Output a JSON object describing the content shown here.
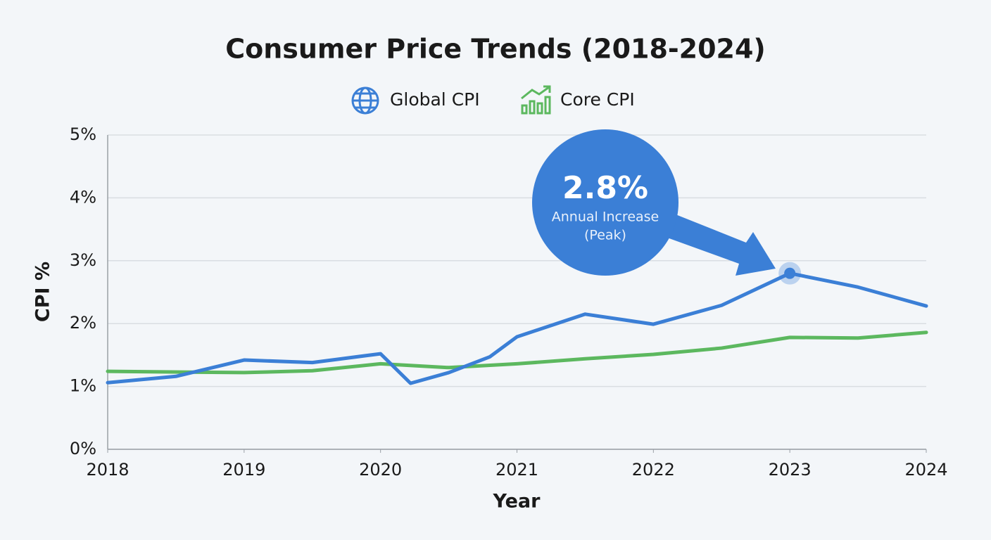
{
  "chart_data": {
    "type": "line",
    "title": "Consumer Price Trends (2018-2024)",
    "xlabel": "Year",
    "ylabel": "CPI %",
    "legend": "top",
    "grid": true,
    "xlim": [
      2018,
      2024
    ],
    "xticks": [
      2018,
      2019,
      2020,
      2021,
      2022,
      2023,
      2024
    ],
    "ylim": [
      0,
      5
    ],
    "yticks": [
      {
        "value": 0,
        "label": "0%"
      },
      {
        "value": 1,
        "label": "1%"
      },
      {
        "value": 2,
        "label": "2%"
      },
      {
        "value": 3,
        "label": "3%"
      },
      {
        "value": 4,
        "label": "4%"
      },
      {
        "value": 5,
        "label": "5%"
      }
    ],
    "series": [
      {
        "name": "Global CPI",
        "color": "#3b7fd6",
        "x": [
          2018,
          2018.5,
          2019,
          2019.5,
          2020,
          2020.22,
          2020.5,
          2020.8,
          2021,
          2021.5,
          2022,
          2022.5,
          2023,
          2023.5,
          2024
        ],
        "values": [
          1.06,
          1.16,
          1.42,
          1.38,
          1.52,
          1.05,
          1.22,
          1.47,
          1.79,
          2.15,
          1.99,
          2.29,
          2.8,
          2.58,
          2.28
        ]
      },
      {
        "name": "Core CPI",
        "color": "#5cb85f",
        "x": [
          2018,
          2019,
          2019.5,
          2020,
          2020.5,
          2021,
          2021.5,
          2022,
          2022.5,
          2023,
          2023.5,
          2024
        ],
        "values": [
          1.24,
          1.22,
          1.25,
          1.36,
          1.3,
          1.36,
          1.44,
          1.51,
          1.61,
          1.78,
          1.77,
          1.86
        ]
      }
    ],
    "annotations": [
      "2.8%",
      "Annual Increase",
      "(Peak)"
    ]
  }
}
